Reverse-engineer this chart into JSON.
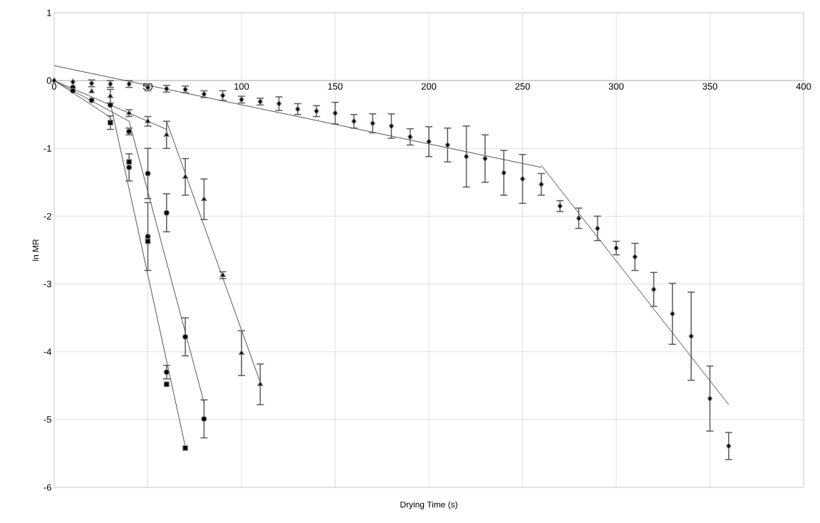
{
  "chart_data": {
    "type": "scatter",
    "xlabel": "Drying Time (s)",
    "ylabel": "ln MR",
    "xlim": [
      0,
      400
    ],
    "ylim": [
      -6,
      1
    ],
    "xticks": [
      0,
      50,
      100,
      150,
      200,
      250,
      300,
      350,
      400
    ],
    "yticks": [
      -6,
      -5,
      -4,
      -3,
      -2,
      -1,
      0,
      1
    ],
    "grid": true,
    "series": [
      {
        "type": "scatter",
        "marker": "diamond",
        "color": "#000000",
        "x": [
          0,
          10,
          20,
          30,
          40,
          50,
          60,
          70,
          80,
          90,
          100,
          110,
          120,
          130,
          140,
          150,
          160,
          170,
          180,
          190,
          200,
          210,
          220,
          230,
          240,
          250,
          260,
          270,
          280,
          290,
          300,
          310,
          320,
          330,
          340,
          350,
          360
        ],
        "values": [
          0,
          -0.02,
          -0.04,
          -0.05,
          -0.05,
          -0.1,
          -0.12,
          -0.13,
          -0.2,
          -0.22,
          -0.28,
          -0.31,
          -0.34,
          -0.42,
          -0.45,
          -0.48,
          -0.6,
          -0.63,
          -0.67,
          -0.83,
          -0.9,
          -0.95,
          -1.12,
          -1.15,
          -1.36,
          -1.45,
          -1.53,
          -1.85,
          -2.03,
          -2.18,
          -2.47,
          -2.6,
          -3.08,
          -3.44,
          -3.77,
          -4.69,
          -5.39
        ],
        "errors": [
          null,
          null,
          0.05,
          0.05,
          0.05,
          0.05,
          0.05,
          0.05,
          0.05,
          0.07,
          0.05,
          0.05,
          0.1,
          0.08,
          0.08,
          0.16,
          0.1,
          0.14,
          0.18,
          0.12,
          0.22,
          0.25,
          0.45,
          0.35,
          0.33,
          0.36,
          0.16,
          0.08,
          0.15,
          0.18,
          0.1,
          0.2,
          0.25,
          0.45,
          0.65,
          0.48,
          0.2
        ]
      },
      {
        "type": "scatter",
        "marker": "triangle",
        "color": "#000000",
        "x": [
          20,
          30,
          40,
          50,
          60,
          70,
          80,
          90,
          100,
          110
        ],
        "values": [
          -0.16,
          -0.23,
          -0.48,
          -0.6,
          -0.8,
          -1.42,
          -1.75,
          -2.87,
          -4.02,
          -4.48
        ],
        "errors": [
          null,
          0.1,
          0.05,
          0.07,
          0.2,
          0.27,
          0.3,
          0.05,
          0.33,
          0.3
        ]
      },
      {
        "type": "scatter",
        "marker": "circle",
        "color": "#000000",
        "x": [
          10,
          20,
          30,
          40,
          50,
          60,
          70,
          80
        ],
        "values": [
          -0.1,
          -0.29,
          -0.36,
          -0.75,
          -1.37,
          -1.95,
          -3.78,
          -4.99
        ],
        "errors": [
          null,
          null,
          null,
          0.05,
          0.37,
          0.28,
          0.28,
          0.28
        ]
      },
      {
        "type": "scatter",
        "marker": "circle",
        "color": "#000000",
        "x": [
          10,
          40,
          50,
          60
        ],
        "values": [
          -0.15,
          -1.28,
          -2.3,
          -4.3
        ],
        "errors": [
          null,
          0.2,
          0.5,
          0.1
        ]
      },
      {
        "type": "scatter",
        "marker": "square",
        "color": "#000000",
        "x": [
          30,
          40,
          50,
          60,
          70
        ],
        "values": [
          -0.62,
          -1.2,
          -2.37,
          -4.48,
          -5.42
        ],
        "errors": [
          0.1,
          null,
          null,
          null,
          null
        ]
      },
      {
        "type": "line",
        "color": "#404040",
        "x": [
          0,
          260
        ],
        "values": [
          0.22,
          -1.28
        ]
      },
      {
        "type": "line",
        "color": "#404040",
        "x": [
          260,
          360
        ],
        "values": [
          -1.25,
          -4.78
        ]
      },
      {
        "type": "line",
        "color": "#404040",
        "x": [
          0,
          60
        ],
        "values": [
          0,
          -0.72
        ]
      },
      {
        "type": "line",
        "color": "#404040",
        "x": [
          60,
          110
        ],
        "values": [
          -0.6,
          -4.45
        ]
      },
      {
        "type": "line",
        "color": "#404040",
        "x": [
          0,
          40
        ],
        "values": [
          0,
          -0.6
        ]
      },
      {
        "type": "line",
        "color": "#404040",
        "x": [
          40,
          80
        ],
        "values": [
          -0.6,
          -4.75
        ]
      },
      {
        "type": "line",
        "color": "#404040",
        "x": [
          0,
          30
        ],
        "values": [
          0,
          -0.54
        ]
      },
      {
        "type": "line",
        "color": "#404040",
        "x": [
          30,
          70
        ],
        "values": [
          -0.33,
          -5.4
        ]
      }
    ]
  }
}
